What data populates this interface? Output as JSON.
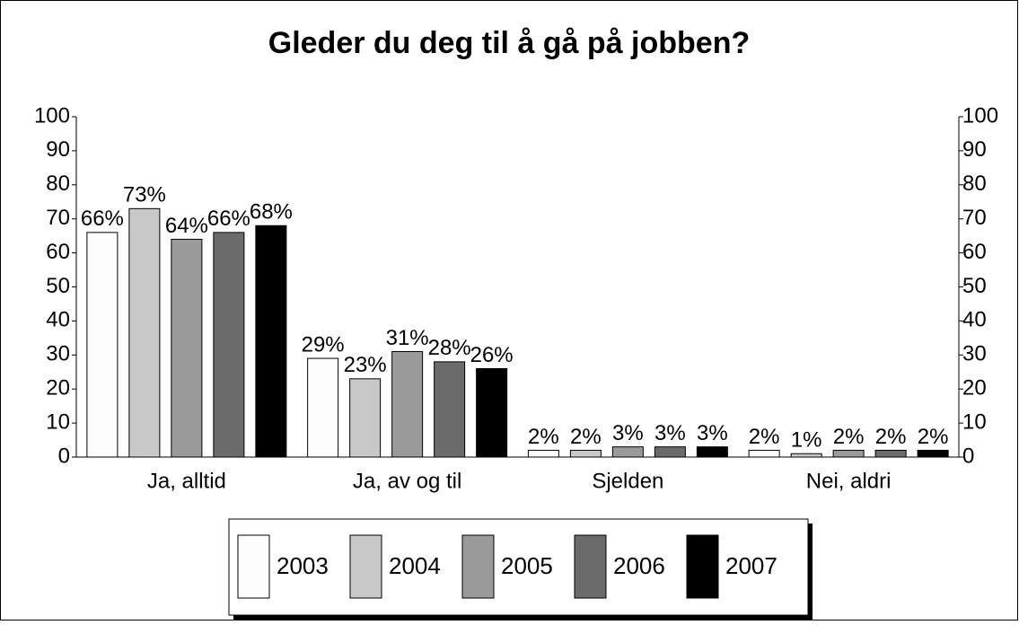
{
  "chart_data": {
    "type": "bar",
    "title": "Gleder du deg til å gå på jobben?",
    "categories": [
      "Ja, alltid",
      "Ja, av og til",
      "Sjelden",
      "Nei, aldri"
    ],
    "series": [
      {
        "name": "2003",
        "color": "#fdfdfd",
        "values": [
          66,
          29,
          2,
          2
        ],
        "value_labels": [
          "66%",
          "29%",
          "2%",
          "2%"
        ]
      },
      {
        "name": "2004",
        "color": "#c8c8c8",
        "values": [
          73,
          23,
          2,
          1
        ],
        "value_labels": [
          "73%",
          "23%",
          "2%",
          "1%"
        ]
      },
      {
        "name": "2005",
        "color": "#9a9a9a",
        "values": [
          64,
          31,
          3,
          2
        ],
        "value_labels": [
          "64%",
          "31%",
          "3%",
          "2%"
        ]
      },
      {
        "name": "2006",
        "color": "#6b6b6b",
        "values": [
          66,
          28,
          3,
          2
        ],
        "value_labels": [
          "66%",
          "28%",
          "3%",
          "2%"
        ]
      },
      {
        "name": "2007",
        "color": "#000000",
        "values": [
          68,
          26,
          3,
          2
        ],
        "value_labels": [
          "68%",
          "26%",
          "3%",
          "2%"
        ]
      }
    ],
    "ylim": [
      0,
      100
    ],
    "yticks": [
      0,
      10,
      20,
      30,
      40,
      50,
      60,
      70,
      80,
      90,
      100
    ],
    "y2lim": [
      0,
      100
    ],
    "y2ticks": [
      0,
      10,
      20,
      30,
      40,
      50,
      60,
      70,
      80,
      90,
      100
    ],
    "legend": "bottom"
  }
}
